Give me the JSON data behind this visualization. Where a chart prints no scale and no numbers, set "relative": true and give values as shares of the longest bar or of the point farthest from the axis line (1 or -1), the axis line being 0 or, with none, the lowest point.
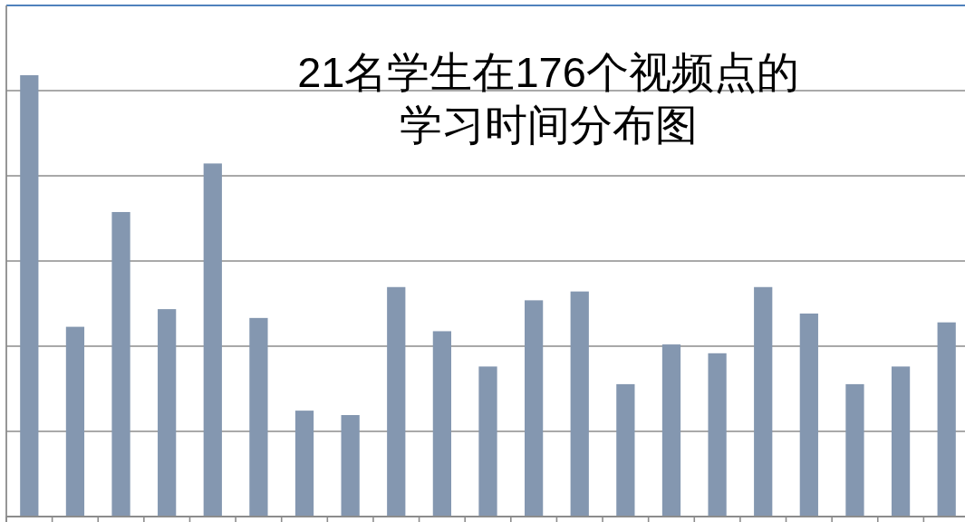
{
  "chart_data": {
    "type": "bar",
    "title": "21名学生在176个视频点的学习时间分布图",
    "categories": [
      null,
      null,
      null,
      null,
      null,
      null,
      null,
      null,
      null,
      null,
      null,
      null,
      null,
      null,
      null,
      null,
      null,
      null,
      null,
      null,
      null
    ],
    "values": [
      1,
      0.43,
      0.69,
      0.47,
      0.8,
      0.45,
      0.24,
      0.23,
      0.52,
      0.42,
      0.34,
      0.49,
      0.51,
      0.3,
      0.39,
      0.37,
      0.52,
      0.46,
      0.3,
      0.34,
      0.44
    ],
    "color": "#8497b0",
    "relative": true,
    "grid": "y"
  }
}
